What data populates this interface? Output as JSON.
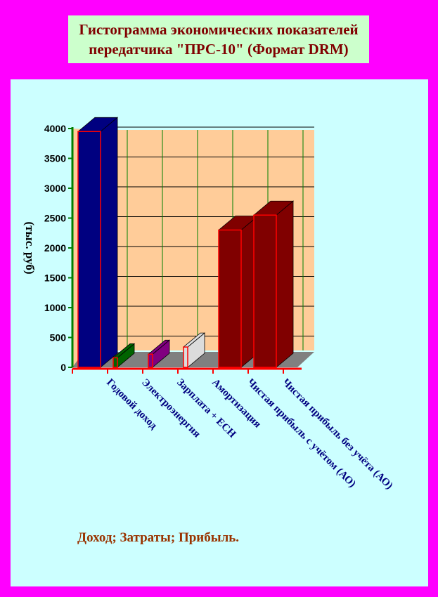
{
  "title": {
    "line1": "Гистограмма экономических показателей",
    "line2": "передатчика \"ПРС-10\" (Формат DRM)"
  },
  "caption": "Доход; Затраты; Прибыль.",
  "colors": {
    "page_background": "#ff00ff",
    "plot_background": "#ccffff",
    "title_background": "#ccffcc",
    "wall": "#ffcc99",
    "floor": "#808080",
    "gridline": "#008000",
    "axis_red": "#ff0000",
    "label_navy": "#000080",
    "title_color": "#800000",
    "caption_color": "#993300"
  },
  "chart_data": {
    "type": "bar",
    "title": "",
    "ylabel": "(тыс. руб)",
    "xlabel": "",
    "ylim": [
      0,
      4000
    ],
    "yticks": [
      0,
      500,
      1000,
      1500,
      2000,
      2500,
      3000,
      3500,
      4000
    ],
    "grid": true,
    "categories": [
      "Годовой доход",
      "Электроэнергия",
      "Зарплата + ЕСН",
      "Амортизация",
      "Чистая прибыль с учётом (АО)",
      "Чистая прибыль без учёта (АО)"
    ],
    "values": [
      3950,
      160,
      220,
      340,
      2300,
      2550
    ],
    "bar_colors": [
      "#000080",
      "#006400",
      "#800080",
      "#dcdcdc",
      "#800000",
      "#800000"
    ]
  }
}
